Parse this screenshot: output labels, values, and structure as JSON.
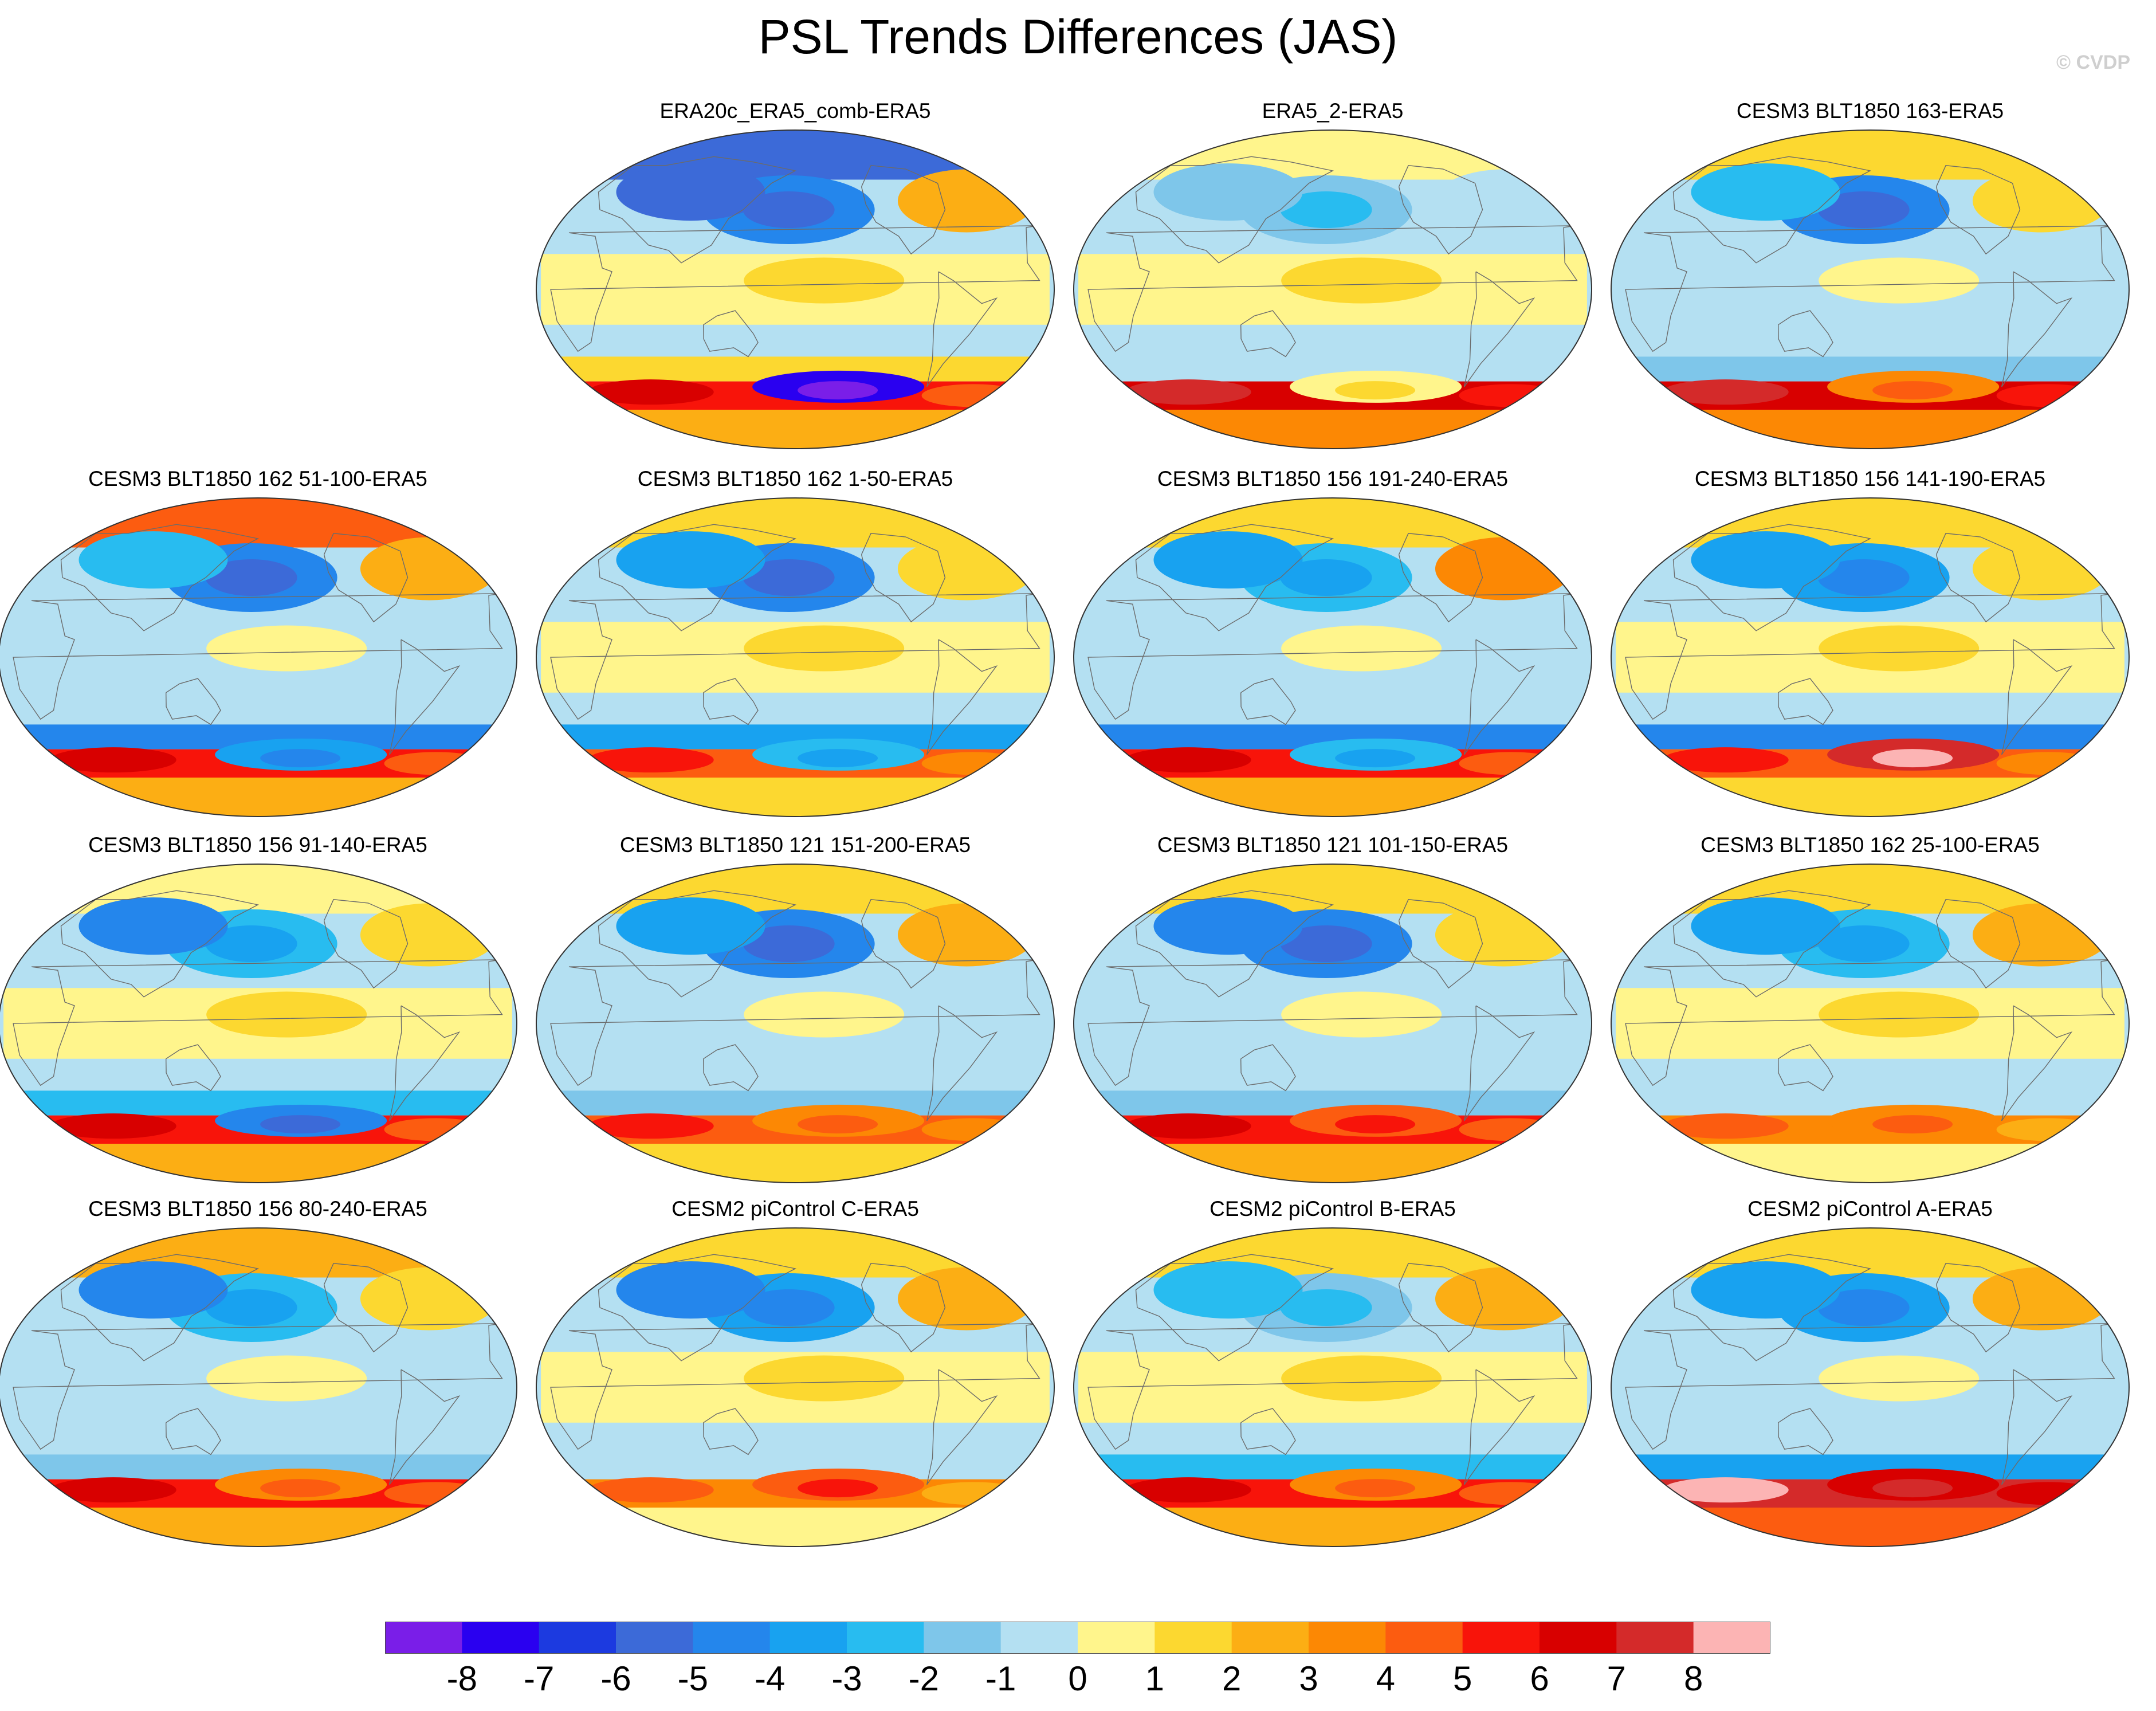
{
  "title": "PSL Trends Differences (JAS)",
  "watermark": "© CVDP",
  "chart_data": {
    "type": "heatmap",
    "title": "PSL Trends Differences (JAS)",
    "variable": "PSL",
    "season": "JAS",
    "projection": "Robinson (Pacific-centred global maps)",
    "panels": [
      "ERA20c_ERA5_comb-ERA5",
      "ERA5_2-ERA5",
      "CESM3 BLT1850 163-ERA5",
      "CESM3 BLT1850 162 51-100-ERA5",
      "CESM3 BLT1850 162 1-50-ERA5",
      "CESM3 BLT1850 156 191-240-ERA5",
      "CESM3 BLT1850 156 141-190-ERA5",
      "CESM3 BLT1850 156 91-140-ERA5",
      "CESM3 BLT1850 121 151-200-ERA5",
      "CESM3 BLT1850 121 101-150-ERA5",
      "CESM3 BLT1850 162 25-100-ERA5",
      "CESM3 BLT1850 156 80-240-ERA5",
      "CESM2 piControl C-ERA5",
      "CESM2 piControl B-ERA5",
      "CESM2 piControl A-ERA5"
    ],
    "colorbar": {
      "labels": [
        "-8",
        "-7",
        "-6",
        "-5",
        "-4",
        "-3",
        "-2",
        "-1",
        "0",
        "1",
        "2",
        "3",
        "4",
        "5",
        "6",
        "7",
        "8"
      ],
      "colors": [
        "#7a1ee8",
        "#2a00f0",
        "#1c3ae0",
        "#3c6ad8",
        "#2486ec",
        "#18a2f0",
        "#28bcf0",
        "#7ec6ea",
        "#b4e0f2",
        "#fff58c",
        "#fcd830",
        "#fcae14",
        "#fc8804",
        "#fc5c10",
        "#f8140a",
        "#d80000",
        "#d42a2a",
        "#fcb4b4"
      ],
      "range": [
        -8,
        8
      ]
    },
    "panel_features": [
      {
        "label": "ERA20c_ERA5_comb-ERA5",
        "north": "strong negative (blue)",
        "tropics": "slightly negative with positive Pacific band",
        "south": "strong negative near Antarctica, positive ring near 55S"
      },
      {
        "label": "ERA5_2-ERA5",
        "north": "slightly negative",
        "tropics": "weak positive central Pacific",
        "south": "strong positive (red) Southern Ocean"
      },
      {
        "label": "CESM3 BLT1850 163-ERA5",
        "north": "negative North Pacific, positive North America",
        "tropics": "slightly negative",
        "south": "positive with maximum near 60S"
      },
      {
        "label": "CESM3 BLT1850 162 51-100-ERA5",
        "north": "positive Arctic, negative North Pacific",
        "tropics": "slightly negative",
        "south": "negative band then strong positive"
      },
      {
        "label": "CESM3 BLT1850 162 1-50-ERA5",
        "north": "negative North Pacific",
        "tropics": "weak positive Pacific",
        "south": "negative band then positive"
      },
      {
        "label": "CESM3 BLT1850 156 191-240-ERA5",
        "north": "positive over North Atlantic",
        "tropics": "slightly negative",
        "south": "negative band then strong positive"
      },
      {
        "label": "CESM3 BLT1850 156 141-190-ERA5",
        "north": "negative Asia",
        "tropics": "mixed",
        "south": "strong positive maximum"
      },
      {
        "label": "CESM3 BLT1850 156 91-140-ERA5",
        "north": "negative Asia",
        "tropics": "weak positive",
        "south": "negative Pacific then strong positive"
      },
      {
        "label": "CESM3 BLT1850 121 151-200-ERA5",
        "north": "negative North Pacific",
        "tropics": "slightly negative",
        "south": "strong positive"
      },
      {
        "label": "CESM3 BLT1850 121 101-150-ERA5",
        "north": "negative Asia",
        "tropics": "slightly negative",
        "south": "positive with negative South Atlantic"
      },
      {
        "label": "CESM3 BLT1850 162 25-100-ERA5",
        "north": "mixed",
        "tropics": "weak positive",
        "south": "positive band"
      },
      {
        "label": "CESM3 BLT1850 156 80-240-ERA5",
        "north": "negative Asia, positive Arctic",
        "tropics": "slightly negative",
        "south": "strong positive band"
      },
      {
        "label": "CESM2 piControl C-ERA5",
        "north": "negative Asia",
        "tropics": "weak positive",
        "south": "positive Pacific sector"
      },
      {
        "label": "CESM2 piControl B-ERA5",
        "north": "mixed",
        "tropics": "weak positive",
        "south": "strong positive, negative South Atlantic"
      },
      {
        "label": "CESM2 piControl A-ERA5",
        "north": "negative Asia, positive Atlantic",
        "tropics": "negative band",
        "south": "very strong positive band"
      }
    ]
  }
}
